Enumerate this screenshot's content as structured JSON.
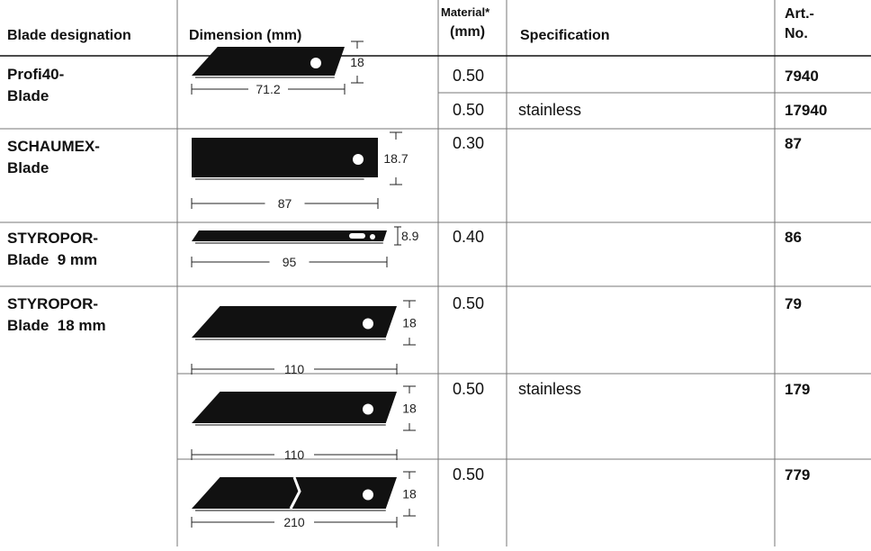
{
  "header": {
    "columns": [
      [
        "Blade designation"
      ],
      [
        "Dimension (mm)"
      ],
      [
        "Material*",
        "(mm)"
      ],
      [
        "Specification"
      ],
      [
        "Art.-",
        "No."
      ]
    ]
  },
  "groups": [
    {
      "name": [
        "Profi40-",
        "Blade"
      ],
      "rows": [
        {
          "dimension": {
            "height": "18",
            "length": "71.2"
          },
          "material": "0.50",
          "art_no": "7940"
        },
        {
          "material": "0.50",
          "specification": "stainless",
          "art_no": "17940"
        }
      ]
    },
    {
      "name": [
        "SCHAUMEX-",
        "Blade"
      ],
      "rows": [
        {
          "dimension": {
            "height": "18.7",
            "length": "87"
          },
          "material": "0.30",
          "art_no": "87"
        }
      ]
    },
    {
      "name": [
        "STYROPOR-",
        "Blade  9 mm"
      ],
      "rows": [
        {
          "dimension": {
            "height": "8.9",
            "length": "95"
          },
          "material": "0.40",
          "art_no": "86"
        }
      ]
    },
    {
      "name": [
        "STYROPOR-",
        "Blade  18 mm"
      ],
      "rows": [
        {
          "dimension": {
            "height": "18",
            "length": "110"
          },
          "material": "0.50",
          "art_no": "79"
        },
        {
          "dimension": {
            "height": "18",
            "length": "110"
          },
          "material": "0.50",
          "specification": "stainless",
          "art_no": "179"
        },
        {
          "dimension": {
            "height": "18",
            "length": "210"
          },
          "material": "0.50",
          "art_no": "779"
        }
      ]
    }
  ]
}
